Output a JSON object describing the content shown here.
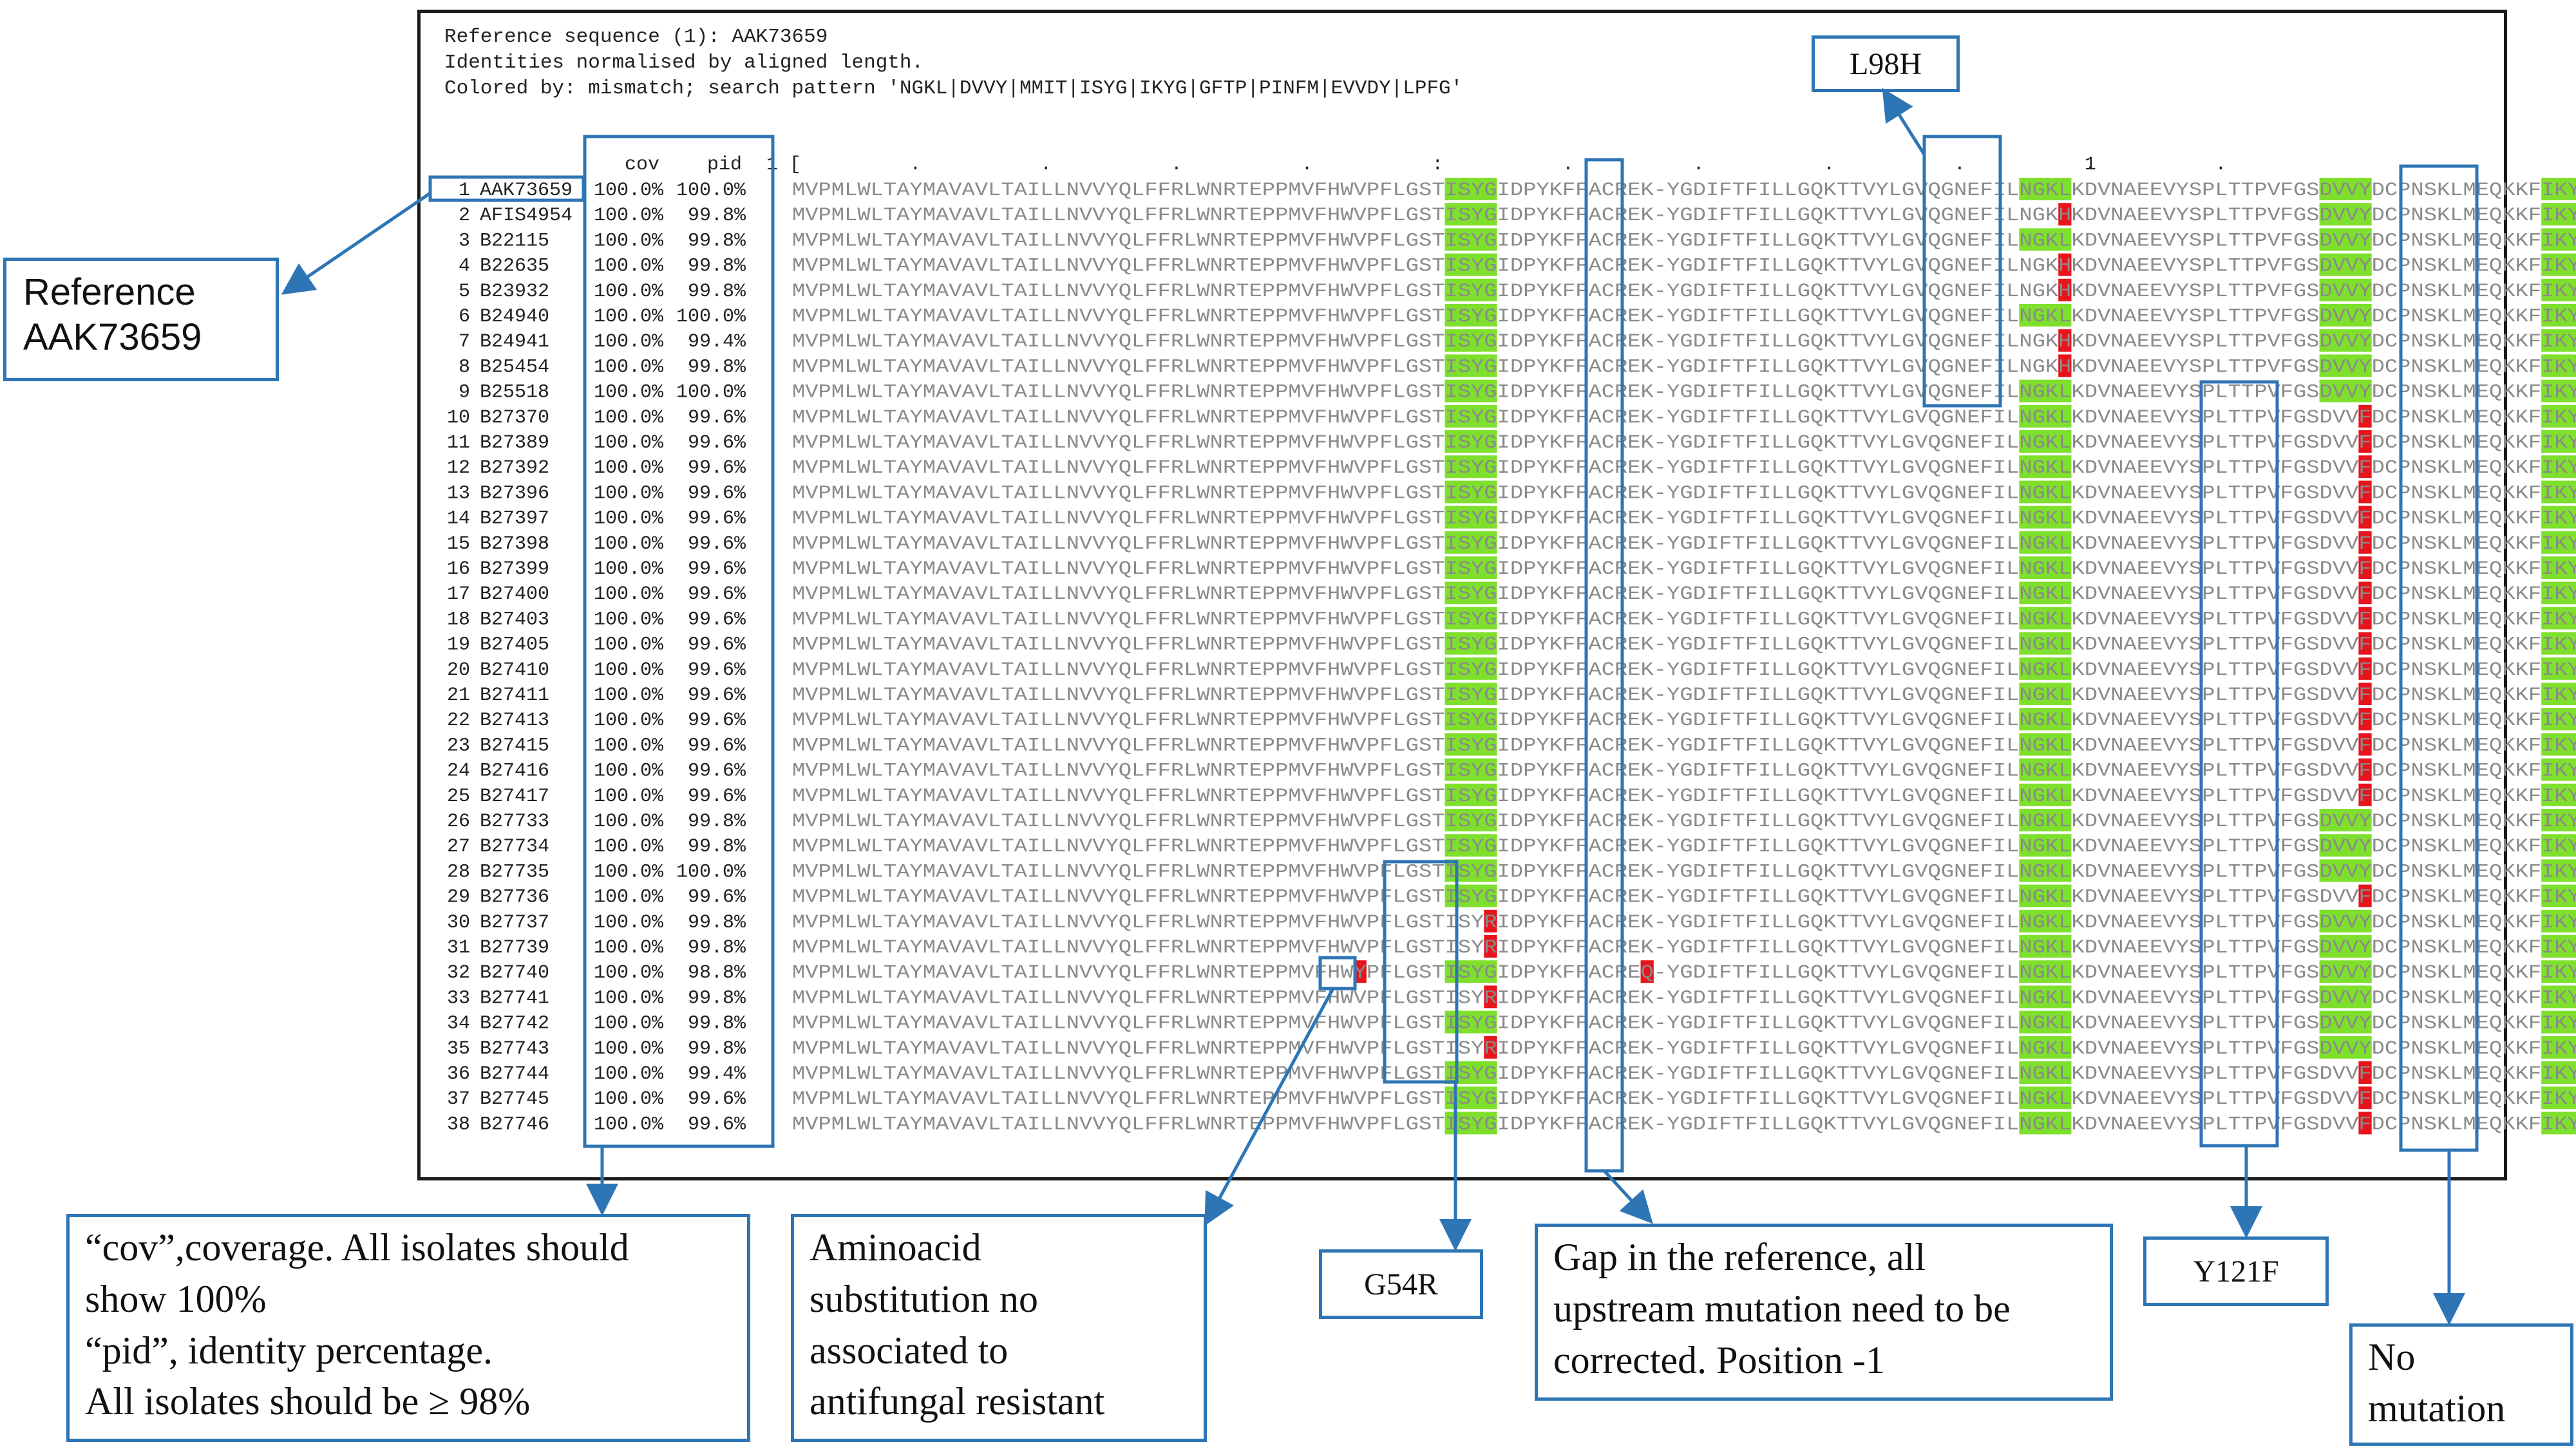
{
  "header": {
    "line1": "Reference sequence (1): AAK73659",
    "line2": "Identities normalised by aligned length.",
    "line3": "Colored by: mismatch; search pattern 'NGKL|DVVY|MMIT|ISYG|IKYG|GFTP|PINFM|EVVDY|LPFG'"
  },
  "column_headers": {
    "cov": "cov",
    "pid": "pid",
    "ruler_start": "1 [",
    "ruler_mark": "1"
  },
  "ruler_dots": [
    ".",
    ".",
    ".",
    ".",
    ":",
    ".",
    ".",
    ".",
    ".",
    ".",
    "."
  ],
  "base_sequence": "MVPMLWLTAYMAVAVLTAILLNVVYQLFFRLWNRTEPPMVFHWVPFLGSTISYGIDPYKFFACREK-YGDIFTFILLGQKTTVYLGVQGNEFILNGKLKDVNAEEVYSPLTTPVFGSDVVYDCPNSKLMEQKKFIKYGLTQS",
  "rows": [
    {
      "n": "1",
      "id": "AAK73659",
      "cov": "100.0%",
      "pid": "100.0%",
      "diffs": {},
      "motifs": [
        "ISYG",
        "NGKL",
        "DVVY",
        "IKYG"
      ]
    },
    {
      "n": "2",
      "id": "AFIS4954",
      "cov": "100.0%",
      "pid": "99.8%",
      "diffs": {
        "97": "H"
      },
      "motifs": [
        "ISYG",
        "DVVY",
        "IKYG"
      ]
    },
    {
      "n": "3",
      "id": "B22115",
      "cov": "100.0%",
      "pid": "99.8%",
      "diffs": {},
      "motifs": [
        "ISYG",
        "NGKL",
        "DVVY",
        "IKYG"
      ]
    },
    {
      "n": "4",
      "id": "B22635",
      "cov": "100.0%",
      "pid": "99.8%",
      "diffs": {
        "97": "H"
      },
      "motifs": [
        "ISYG",
        "DVVY",
        "IKYG"
      ]
    },
    {
      "n": "5",
      "id": "B23932",
      "cov": "100.0%",
      "pid": "99.8%",
      "diffs": {
        "97": "H"
      },
      "motifs": [
        "ISYG",
        "DVVY",
        "IKYG"
      ]
    },
    {
      "n": "6",
      "id": "B24940",
      "cov": "100.0%",
      "pid": "100.0%",
      "diffs": {},
      "motifs": [
        "ISYG",
        "NGKL",
        "DVVY",
        "IKYG"
      ]
    },
    {
      "n": "7",
      "id": "B24941",
      "cov": "100.0%",
      "pid": "99.4%",
      "diffs": {
        "97": "H"
      },
      "motifs": [
        "ISYG",
        "DVVY",
        "IKYG"
      ]
    },
    {
      "n": "8",
      "id": "B25454",
      "cov": "100.0%",
      "pid": "99.8%",
      "diffs": {
        "97": "H"
      },
      "motifs": [
        "ISYG",
        "DVVY",
        "IKYG"
      ]
    },
    {
      "n": "9",
      "id": "B25518",
      "cov": "100.0%",
      "pid": "100.0%",
      "diffs": {},
      "motifs": [
        "ISYG",
        "NGKL",
        "DVVY",
        "IKYG"
      ]
    },
    {
      "n": "10",
      "id": "B27370",
      "cov": "100.0%",
      "pid": "99.6%",
      "diffs": {
        "120": "F"
      },
      "motifs": [
        "ISYG",
        "NGKL",
        "IKYG"
      ]
    },
    {
      "n": "11",
      "id": "B27389",
      "cov": "100.0%",
      "pid": "99.6%",
      "diffs": {
        "120": "F"
      },
      "motifs": [
        "ISYG",
        "NGKL",
        "IKYG"
      ]
    },
    {
      "n": "12",
      "id": "B27392",
      "cov": "100.0%",
      "pid": "99.6%",
      "diffs": {
        "120": "F"
      },
      "motifs": [
        "ISYG",
        "NGKL",
        "IKYG"
      ]
    },
    {
      "n": "13",
      "id": "B27396",
      "cov": "100.0%",
      "pid": "99.6%",
      "diffs": {
        "120": "F"
      },
      "motifs": [
        "ISYG",
        "NGKL",
        "IKYG"
      ]
    },
    {
      "n": "14",
      "id": "B27397",
      "cov": "100.0%",
      "pid": "99.6%",
      "diffs": {
        "120": "F"
      },
      "motifs": [
        "ISYG",
        "NGKL",
        "IKYG"
      ]
    },
    {
      "n": "15",
      "id": "B27398",
      "cov": "100.0%",
      "pid": "99.6%",
      "diffs": {
        "120": "F"
      },
      "motifs": [
        "ISYG",
        "NGKL",
        "IKYG"
      ]
    },
    {
      "n": "16",
      "id": "B27399",
      "cov": "100.0%",
      "pid": "99.6%",
      "diffs": {
        "120": "F"
      },
      "motifs": [
        "ISYG",
        "NGKL",
        "IKYG"
      ]
    },
    {
      "n": "17",
      "id": "B27400",
      "cov": "100.0%",
      "pid": "99.6%",
      "diffs": {
        "120": "F"
      },
      "motifs": [
        "ISYG",
        "NGKL",
        "IKYG"
      ]
    },
    {
      "n": "18",
      "id": "B27403",
      "cov": "100.0%",
      "pid": "99.6%",
      "diffs": {
        "120": "F"
      },
      "motifs": [
        "ISYG",
        "NGKL",
        "IKYG"
      ]
    },
    {
      "n": "19",
      "id": "B27405",
      "cov": "100.0%",
      "pid": "99.6%",
      "diffs": {
        "120": "F"
      },
      "motifs": [
        "ISYG",
        "NGKL",
        "IKYG"
      ]
    },
    {
      "n": "20",
      "id": "B27410",
      "cov": "100.0%",
      "pid": "99.6%",
      "diffs": {
        "120": "F"
      },
      "motifs": [
        "ISYG",
        "NGKL",
        "IKYG"
      ]
    },
    {
      "n": "21",
      "id": "B27411",
      "cov": "100.0%",
      "pid": "99.6%",
      "diffs": {
        "120": "F"
      },
      "motifs": [
        "ISYG",
        "NGKL",
        "IKYG"
      ]
    },
    {
      "n": "22",
      "id": "B27413",
      "cov": "100.0%",
      "pid": "99.6%",
      "diffs": {
        "120": "F"
      },
      "motifs": [
        "ISYG",
        "NGKL",
        "IKYG"
      ]
    },
    {
      "n": "23",
      "id": "B27415",
      "cov": "100.0%",
      "pid": "99.6%",
      "diffs": {
        "120": "F"
      },
      "motifs": [
        "ISYG",
        "NGKL",
        "IKYG"
      ]
    },
    {
      "n": "24",
      "id": "B27416",
      "cov": "100.0%",
      "pid": "99.6%",
      "diffs": {
        "120": "F"
      },
      "motifs": [
        "ISYG",
        "NGKL",
        "IKYG"
      ]
    },
    {
      "n": "25",
      "id": "B27417",
      "cov": "100.0%",
      "pid": "99.6%",
      "diffs": {
        "120": "F"
      },
      "motifs": [
        "ISYG",
        "NGKL",
        "IKYG"
      ]
    },
    {
      "n": "26",
      "id": "B27733",
      "cov": "100.0%",
      "pid": "99.8%",
      "diffs": {},
      "motifs": [
        "ISYG",
        "NGKL",
        "DVVY",
        "IKYG"
      ]
    },
    {
      "n": "27",
      "id": "B27734",
      "cov": "100.0%",
      "pid": "99.8%",
      "diffs": {},
      "motifs": [
        "ISYG",
        "NGKL",
        "DVVY",
        "IKYG"
      ]
    },
    {
      "n": "28",
      "id": "B27735",
      "cov": "100.0%",
      "pid": "100.0%",
      "diffs": {},
      "motifs": [
        "ISYG",
        "NGKL",
        "DVVY",
        "IKYG"
      ]
    },
    {
      "n": "29",
      "id": "B27736",
      "cov": "100.0%",
      "pid": "99.6%",
      "diffs": {
        "120": "F"
      },
      "motifs": [
        "ISYG",
        "NGKL",
        "IKYG"
      ]
    },
    {
      "n": "30",
      "id": "B27737",
      "cov": "100.0%",
      "pid": "99.8%",
      "diffs": {
        "53": "R"
      },
      "motifs": [
        "NGKL",
        "DVVY",
        "IKYG"
      ]
    },
    {
      "n": "31",
      "id": "B27739",
      "cov": "100.0%",
      "pid": "99.8%",
      "diffs": {
        "53": "R"
      },
      "motifs": [
        "NGKL",
        "DVVY",
        "IKYG"
      ]
    },
    {
      "n": "32",
      "id": "B27740",
      "cov": "100.0%",
      "pid": "98.8%",
      "diffs": {
        "43": "Y",
        "65": "Q"
      },
      "motifs": [
        "ISYG",
        "NGKL",
        "DVVY",
        "IKYG"
      ]
    },
    {
      "n": "33",
      "id": "B27741",
      "cov": "100.0%",
      "pid": "99.8%",
      "diffs": {
        "53": "R"
      },
      "motifs": [
        "NGKL",
        "DVVY",
        "IKYG"
      ]
    },
    {
      "n": "34",
      "id": "B27742",
      "cov": "100.0%",
      "pid": "99.8%",
      "diffs": {},
      "motifs": [
        "ISYG",
        "NGKL",
        "DVVY",
        "IKYG"
      ]
    },
    {
      "n": "35",
      "id": "B27743",
      "cov": "100.0%",
      "pid": "99.8%",
      "diffs": {
        "53": "R"
      },
      "motifs": [
        "NGKL",
        "DVVY",
        "IKYG"
      ]
    },
    {
      "n": "36",
      "id": "B27744",
      "cov": "100.0%",
      "pid": "99.4%",
      "diffs": {
        "120": "F"
      },
      "motifs": [
        "ISYG",
        "NGKL",
        "IKYG"
      ]
    },
    {
      "n": "37",
      "id": "B27745",
      "cov": "100.0%",
      "pid": "99.6%",
      "diffs": {
        "120": "F"
      },
      "motifs": [
        "ISYG",
        "NGKL",
        "IKYG"
      ]
    },
    {
      "n": "38",
      "id": "B27746",
      "cov": "100.0%",
      "pid": "99.6%",
      "diffs": {
        "120": "F"
      },
      "motifs": [
        "ISYG",
        "NGKL",
        "IKYG"
      ]
    }
  ],
  "colors": {
    "motif_green": "#7ee02c",
    "mismatch_red": "#e8141c",
    "sequence_gray": "#8a8a8a",
    "text_dark": "#222222",
    "callout_blue": "#2e75b6"
  },
  "callouts": {
    "reference": [
      "Reference",
      "AAK73659"
    ],
    "coverage": [
      "“cov”,coverage. All isolates should",
      "show 100%",
      "“pid”, identity percentage.",
      "All isolates should be ≥ 98%"
    ],
    "aminoacid": [
      "Aminoacid",
      "substitution no",
      "associated to",
      "antifungal resistant"
    ],
    "gap": [
      "Gap in the reference, all",
      "upstream mutation need to be",
      "corrected. Position -1"
    ],
    "no_mutation": [
      "No",
      "mutation"
    ]
  },
  "labels": {
    "l98h": "L98H",
    "g54r": "G54R",
    "y121f": "Y121F"
  }
}
